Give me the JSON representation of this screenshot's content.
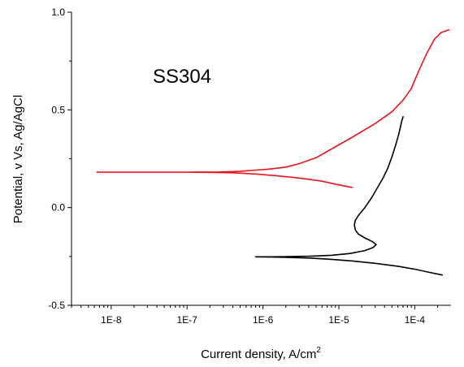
{
  "chart_data": {
    "type": "line",
    "title": "",
    "annotation": "SS304",
    "xlabel": "Current density, A/cm",
    "xlabel_sup": "2",
    "ylabel": "Potential, v Vs, Ag/AgCl",
    "xscale": "log",
    "xlim": [
      3e-09,
      0.0003
    ],
    "ylim": [
      -0.5,
      1.0
    ],
    "x_ticks": [
      1e-08,
      1e-07,
      1e-06,
      1e-05,
      0.0001
    ],
    "x_tick_labels": [
      "1E-8",
      "1E-7",
      "1E-6",
      "1E-5",
      "1E-4"
    ],
    "y_ticks": [
      -0.5,
      0.0,
      0.5,
      1.0
    ],
    "y_tick_labels": [
      "-0.5",
      "0.0",
      "0.5",
      "1.0"
    ],
    "grid": false,
    "series": [
      {
        "color": "#e8141b",
        "points": [
          [
            1.5e-05,
            0.103
          ],
          [
            1.2e-05,
            0.11
          ],
          [
            9e-06,
            0.12
          ],
          [
            6e-06,
            0.135
          ],
          [
            4e-06,
            0.145
          ],
          [
            2.5e-06,
            0.155
          ],
          [
            1.5e-06,
            0.163
          ],
          [
            8e-07,
            0.172
          ],
          [
            4e-07,
            0.178
          ],
          [
            2e-07,
            0.18
          ],
          [
            1e-07,
            0.181
          ],
          [
            3e-08,
            0.181
          ],
          [
            6.5e-09,
            0.181
          ],
          [
            3e-08,
            0.181
          ],
          [
            1e-07,
            0.181
          ],
          [
            2.5e-07,
            0.182
          ],
          [
            5e-07,
            0.185
          ],
          [
            8e-07,
            0.192
          ],
          [
            1.2e-06,
            0.197
          ],
          [
            2e-06,
            0.207
          ],
          [
            3e-06,
            0.225
          ],
          [
            5e-06,
            0.255
          ],
          [
            8e-06,
            0.3
          ],
          [
            1.5e-05,
            0.36
          ],
          [
            3e-05,
            0.43
          ],
          [
            5e-05,
            0.49
          ],
          [
            7e-05,
            0.55
          ],
          [
            9e-05,
            0.61
          ],
          [
            0.00011,
            0.69
          ],
          [
            0.00014,
            0.78
          ],
          [
            0.00018,
            0.86
          ],
          [
            0.00022,
            0.895
          ],
          [
            0.00028,
            0.91
          ]
        ]
      },
      {
        "color": "#000000",
        "points": [
          [
            0.00023,
            -0.345
          ],
          [
            0.00015,
            -0.33
          ],
          [
            0.0001,
            -0.315
          ],
          [
            6e-05,
            -0.3
          ],
          [
            3e-05,
            -0.285
          ],
          [
            1.5e-05,
            -0.273
          ],
          [
            8e-06,
            -0.265
          ],
          [
            4e-06,
            -0.258
          ],
          [
            2e-06,
            -0.255
          ],
          [
            1.3e-06,
            -0.253
          ],
          [
            8e-07,
            -0.252
          ],
          [
            1.3e-06,
            -0.252
          ],
          [
            2e-06,
            -0.251
          ],
          [
            4e-06,
            -0.249
          ],
          [
            8e-06,
            -0.244
          ],
          [
            1.4e-05,
            -0.235
          ],
          [
            2.2e-05,
            -0.22
          ],
          [
            2.8e-05,
            -0.205
          ],
          [
            3.1e-05,
            -0.19
          ],
          [
            2.8e-05,
            -0.175
          ],
          [
            2.2e-05,
            -0.155
          ],
          [
            1.8e-05,
            -0.135
          ],
          [
            1.65e-05,
            -0.115
          ],
          [
            1.6e-05,
            -0.09
          ],
          [
            1.65e-05,
            -0.065
          ],
          [
            1.85e-05,
            -0.035
          ],
          [
            2.2e-05,
            0.0
          ],
          [
            2.7e-05,
            0.05
          ],
          [
            3.2e-05,
            0.1
          ],
          [
            3.8e-05,
            0.15
          ],
          [
            4.4e-05,
            0.2
          ],
          [
            5e-05,
            0.26
          ],
          [
            5.6e-05,
            0.32
          ],
          [
            6.2e-05,
            0.38
          ],
          [
            6.7e-05,
            0.44
          ],
          [
            7e-05,
            0.465
          ]
        ]
      }
    ]
  }
}
